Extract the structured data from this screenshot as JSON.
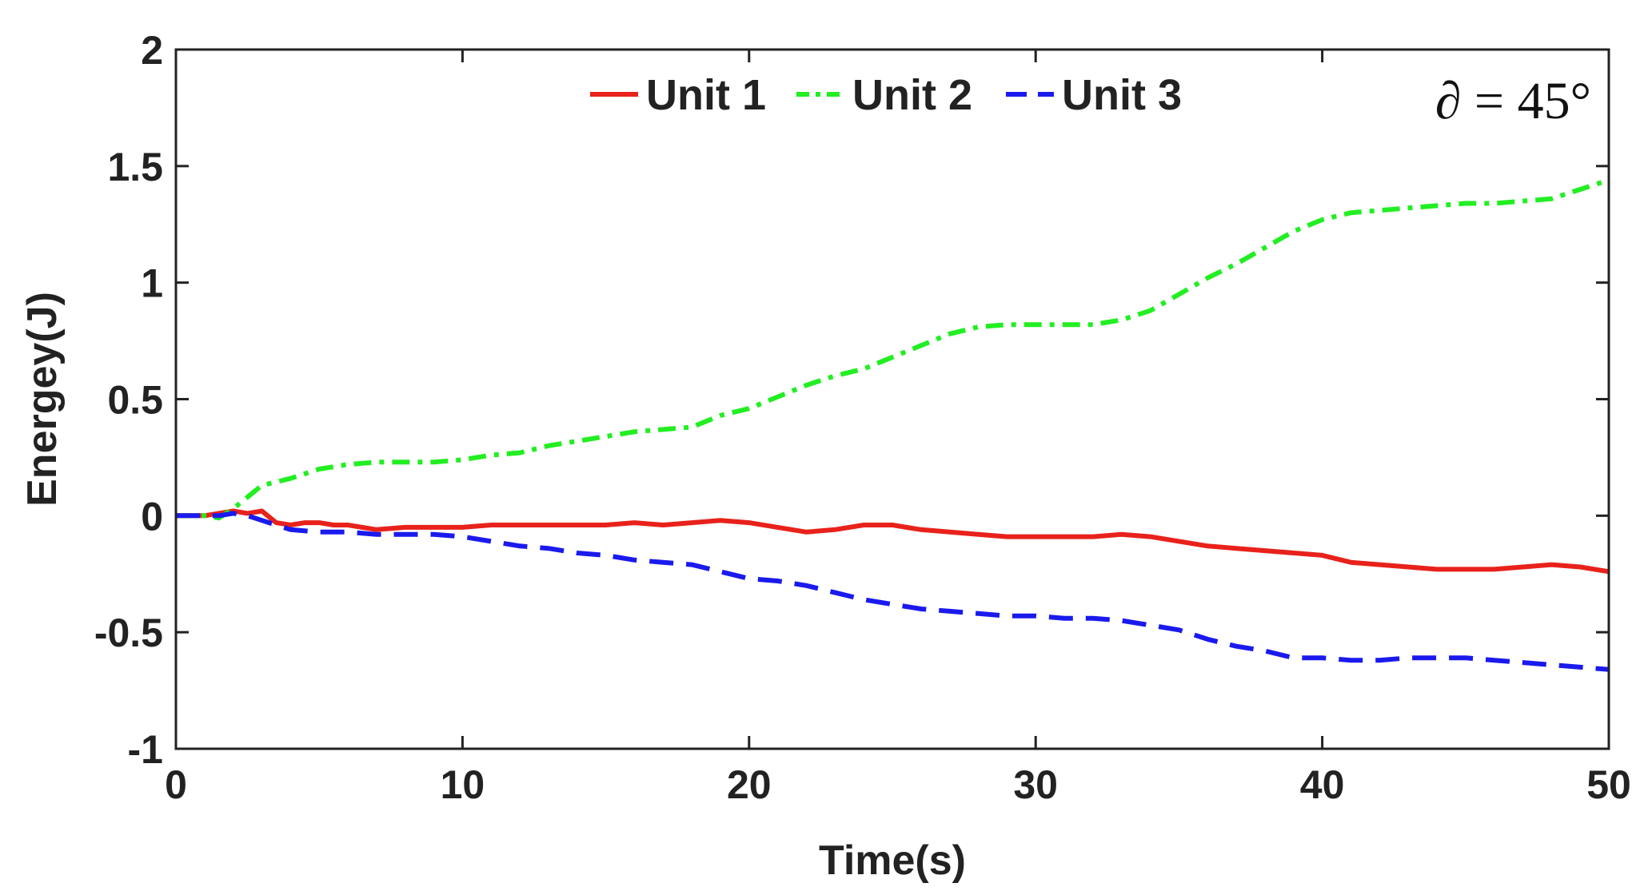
{
  "chart_data": {
    "type": "line",
    "xlabel": "Time(s)",
    "ylabel": "Energey(J)",
    "xlim": [
      0,
      50
    ],
    "ylim": [
      -1,
      2
    ],
    "xticks": [
      "0",
      "10",
      "20",
      "30",
      "40",
      "50"
    ],
    "yticks": [
      "-1",
      "-0.5",
      "0",
      "0.5",
      "1",
      "1.5",
      "2"
    ],
    "grid": false,
    "legend_position": "top-center",
    "annotation": "∂ = 45°",
    "series": [
      {
        "name": "Unit 1",
        "color": "#e8221b",
        "style": "solid",
        "x": [
          0,
          1,
          1.5,
          2,
          2.5,
          3,
          3.5,
          4,
          4.5,
          5,
          5.5,
          6,
          7,
          8,
          9,
          10,
          11,
          12,
          13,
          14,
          15,
          16,
          17,
          18,
          19,
          20,
          21,
          22,
          23,
          24,
          25,
          26,
          27,
          28,
          29,
          30,
          31,
          32,
          33,
          34,
          35,
          36,
          37,
          38,
          39,
          40,
          41,
          42,
          43,
          44,
          45,
          46,
          47,
          48,
          49,
          50
        ],
        "y": [
          0,
          0,
          0.01,
          0.02,
          0.01,
          0.02,
          -0.03,
          -0.04,
          -0.03,
          -0.03,
          -0.04,
          -0.04,
          -0.06,
          -0.05,
          -0.05,
          -0.05,
          -0.04,
          -0.04,
          -0.04,
          -0.04,
          -0.04,
          -0.03,
          -0.04,
          -0.03,
          -0.02,
          -0.03,
          -0.05,
          -0.07,
          -0.06,
          -0.04,
          -0.04,
          -0.06,
          -0.07,
          -0.08,
          -0.09,
          -0.09,
          -0.09,
          -0.09,
          -0.08,
          -0.09,
          -0.11,
          -0.13,
          -0.14,
          -0.15,
          -0.16,
          -0.17,
          -0.2,
          -0.21,
          -0.22,
          -0.23,
          -0.23,
          -0.23,
          -0.22,
          -0.21,
          -0.22,
          -0.24
        ]
      },
      {
        "name": "Unit 2",
        "color": "#22ee22",
        "style": "dashdot",
        "x": [
          0,
          1,
          1.5,
          2,
          2.5,
          3,
          4,
          5,
          6,
          7,
          8,
          9,
          10,
          11,
          12,
          13,
          14,
          15,
          16,
          17,
          18,
          19,
          20,
          21,
          22,
          23,
          24,
          25,
          26,
          27,
          28,
          29,
          30,
          31,
          32,
          33,
          34,
          35,
          36,
          37,
          38,
          39,
          40,
          41,
          42,
          43,
          44,
          45,
          46,
          47,
          48,
          49,
          50
        ],
        "y": [
          0,
          0,
          -0.01,
          0.03,
          0.08,
          0.13,
          0.16,
          0.2,
          0.22,
          0.23,
          0.23,
          0.23,
          0.24,
          0.26,
          0.27,
          0.3,
          0.32,
          0.34,
          0.36,
          0.37,
          0.38,
          0.43,
          0.46,
          0.51,
          0.56,
          0.6,
          0.63,
          0.68,
          0.73,
          0.78,
          0.81,
          0.82,
          0.82,
          0.82,
          0.82,
          0.84,
          0.88,
          0.95,
          1.02,
          1.08,
          1.15,
          1.22,
          1.27,
          1.3,
          1.31,
          1.32,
          1.33,
          1.34,
          1.34,
          1.35,
          1.36,
          1.4,
          1.44
        ]
      },
      {
        "name": "Unit 3",
        "color": "#1a1aee",
        "style": "dashed",
        "x": [
          0,
          1,
          1.5,
          2,
          2.5,
          3,
          3.5,
          4,
          5,
          6,
          7,
          8,
          9,
          10,
          11,
          12,
          13,
          14,
          15,
          16,
          17,
          18,
          19,
          20,
          21,
          22,
          23,
          24,
          25,
          26,
          27,
          28,
          29,
          30,
          31,
          32,
          33,
          34,
          35,
          35.5,
          36,
          37,
          38,
          39,
          40,
          41,
          42,
          43,
          44,
          45,
          46,
          47,
          48,
          49,
          50
        ],
        "y": [
          0,
          0,
          0,
          0.01,
          0,
          -0.02,
          -0.04,
          -0.06,
          -0.07,
          -0.07,
          -0.08,
          -0.08,
          -0.08,
          -0.09,
          -0.11,
          -0.13,
          -0.14,
          -0.16,
          -0.17,
          -0.19,
          -0.2,
          -0.21,
          -0.24,
          -0.27,
          -0.28,
          -0.3,
          -0.33,
          -0.36,
          -0.38,
          -0.4,
          -0.41,
          -0.42,
          -0.43,
          -0.43,
          -0.44,
          -0.44,
          -0.45,
          -0.47,
          -0.49,
          -0.51,
          -0.53,
          -0.56,
          -0.58,
          -0.61,
          -0.61,
          -0.62,
          -0.62,
          -0.61,
          -0.61,
          -0.61,
          -0.62,
          -0.63,
          -0.64,
          -0.65,
          -0.66
        ]
      }
    ]
  }
}
